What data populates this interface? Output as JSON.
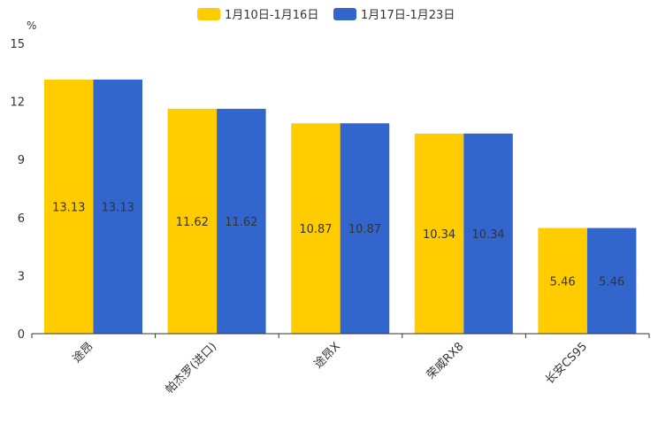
{
  "chart_data": {
    "type": "bar",
    "unit_label": "%",
    "categories": [
      "途昂",
      "帕杰罗(进口)",
      "途昂X",
      "荣威RX8",
      "长安CS95"
    ],
    "series": [
      {
        "name": "1月10日-1月16日",
        "color": "#FFCC00",
        "values": [
          13.13,
          11.62,
          10.87,
          10.34,
          5.46
        ]
      },
      {
        "name": "1月17日-1月23日",
        "color": "#3366CC",
        "values": [
          13.13,
          11.62,
          10.87,
          10.34,
          5.46
        ]
      }
    ],
    "data_labels": [
      [
        "13.13",
        "11.62",
        "10.87",
        "10.34",
        "5.46"
      ],
      [
        "13.13",
        "11.62",
        "10.87",
        "10.34",
        "5.46"
      ]
    ],
    "yticks": [
      "0",
      "3",
      "6",
      "9",
      "12",
      "15"
    ],
    "ylim": [
      0,
      15
    ],
    "legend_position": "top-center",
    "grid": false
  }
}
